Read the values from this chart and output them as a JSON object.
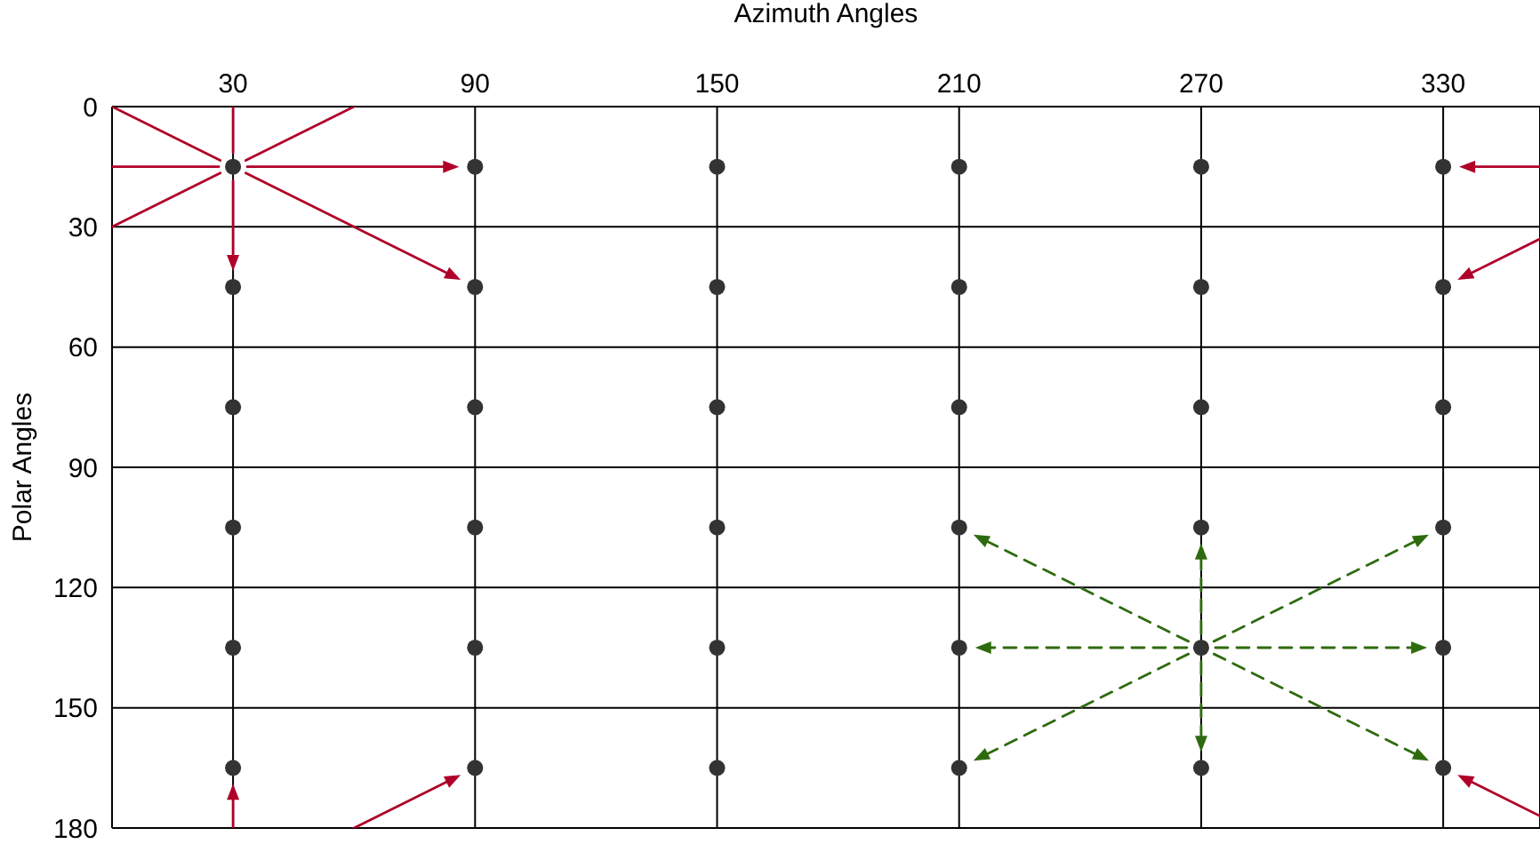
{
  "chart_data": {
    "type": "scatter",
    "xlabel": "Azimuth Angles",
    "ylabel": "Polar Angles",
    "x": [
      30,
      30,
      30,
      30,
      30,
      30,
      90,
      90,
      90,
      90,
      90,
      90,
      150,
      150,
      150,
      150,
      150,
      150,
      210,
      210,
      210,
      210,
      210,
      210,
      270,
      270,
      270,
      270,
      270,
      270,
      330,
      330,
      330,
      330,
      330,
      330
    ],
    "values": [
      15,
      45,
      75,
      105,
      135,
      165,
      15,
      45,
      75,
      105,
      135,
      165,
      15,
      45,
      75,
      105,
      135,
      165,
      15,
      45,
      75,
      105,
      135,
      165,
      15,
      45,
      75,
      105,
      135,
      165,
      15,
      45,
      75,
      105,
      135,
      165
    ],
    "color": "#333333",
    "marker": "circle",
    "xlim": [
      0,
      354
    ],
    "xticks": [
      30,
      90,
      150,
      210,
      270,
      330
    ],
    "ylim": [
      180,
      0
    ],
    "yticks": [
      0,
      30,
      60,
      90,
      120,
      150,
      180
    ],
    "grid": true
  }
}
